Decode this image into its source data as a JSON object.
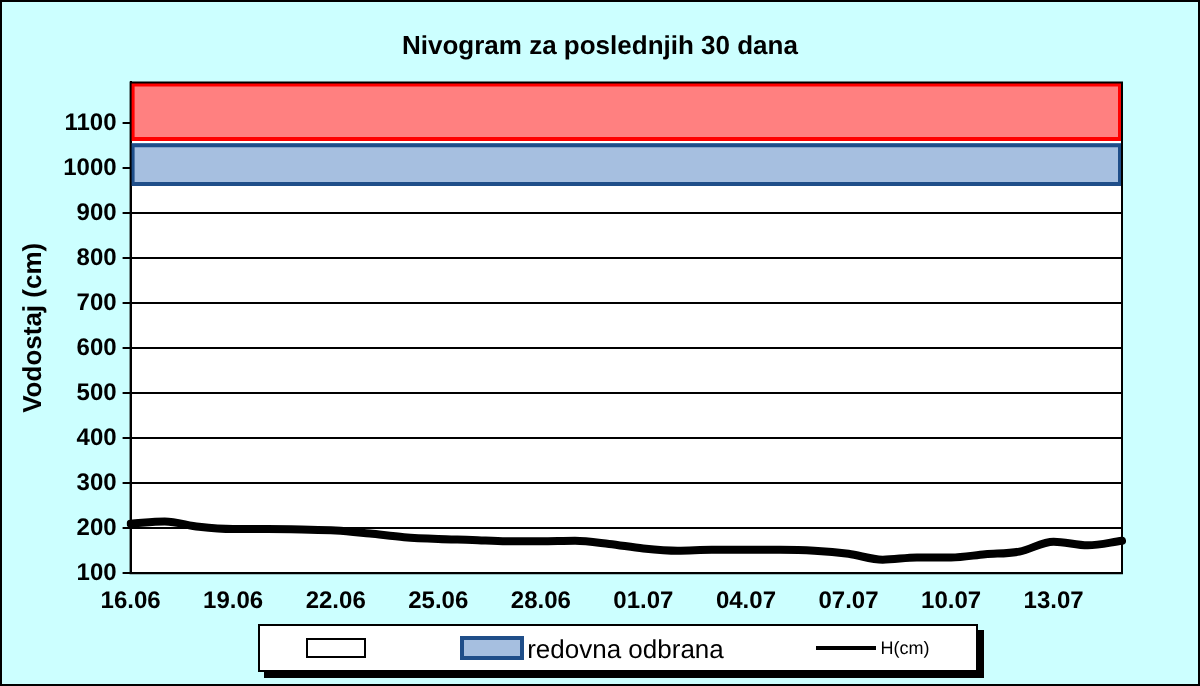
{
  "chart_data": {
    "type": "line",
    "title": "Nivogram za poslednjih 30 dana",
    "ylabel": "Vodostaj (cm)",
    "categories": [
      "16.06",
      null,
      null,
      "19.06",
      null,
      null,
      "22.06",
      null,
      null,
      "25.06",
      null,
      null,
      "28.06",
      null,
      null,
      "01.07",
      null,
      null,
      "04.07",
      null,
      null,
      "07.07",
      null,
      null,
      "10.07",
      null,
      null,
      "13.07",
      null,
      null
    ],
    "series": [
      {
        "name": "H(cm)",
        "color": "#000000",
        "values": [
          210,
          215,
          203,
          198,
          198,
          197,
          195,
          188,
          180,
          176,
          174,
          171,
          171,
          172,
          165,
          155,
          150,
          152,
          152,
          152,
          150,
          143,
          130,
          135,
          135,
          142,
          148,
          170,
          162,
          172
        ]
      }
    ],
    "ylim": [
      100,
      1190
    ],
    "yticks": [
      100,
      200,
      300,
      400,
      500,
      600,
      700,
      800,
      900,
      1000,
      1100
    ],
    "bands": [
      {
        "axis": "y",
        "from": 1060,
        "to": 1190,
        "color": "#ff8080"
      },
      {
        "axis": "y",
        "from": 960,
        "to": 1055,
        "color": "#a6bfe0",
        "label": "redovna odbrana"
      }
    ],
    "grid": "y",
    "legend": "bottom",
    "marker": "none",
    "line_style": "solid"
  }
}
